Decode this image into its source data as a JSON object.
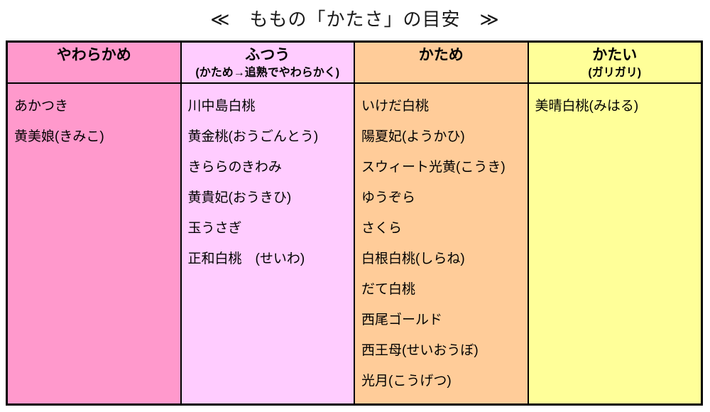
{
  "title": "≪　ももの「かたさ」の目安　≫",
  "table": {
    "border_color": "#000000",
    "columns": [
      {
        "header": "やわらかめ",
        "subheader": "",
        "color": "#FF99CC",
        "items": [
          "あかつき",
          "黄美娘(きみこ)"
        ]
      },
      {
        "header": "ふつう",
        "subheader": "(かため→追熟でやわらかく)",
        "color": "#FFCCFF",
        "items": [
          "川中島白桃",
          "黄金桃(おうごんとう)",
          "きららのきわみ",
          "黄貴妃(おうきひ)",
          "玉うさぎ",
          "正和白桃　(せいわ)"
        ]
      },
      {
        "header": "かため",
        "subheader": "",
        "color": "#FFCC99",
        "items": [
          "いけだ白桃",
          "陽夏妃(ようかひ)",
          "スウィート光黄(こうき)",
          "ゆうぞら",
          "さくら",
          "白根白桃(しらね)",
          "だて白桃",
          "西尾ゴールド",
          "西王母(せいおうぼ)",
          "光月(こうげつ)"
        ]
      },
      {
        "header": "かたい",
        "subheader": "(ガリガリ)",
        "color": "#FFFF99",
        "items": [
          "美晴白桃(みはる)"
        ]
      }
    ]
  },
  "chart_data": {
    "type": "table",
    "title": "≪　ももの「かたさ」の目安　≫",
    "columns": [
      "やわらかめ",
      "ふつう (かため→追熟でやわらかく)",
      "かため",
      "かたい (ガリガリ)"
    ],
    "rows": {
      "やわらかめ": [
        "あかつき",
        "黄美娘(きみこ)"
      ],
      "ふつう": [
        "川中島白桃",
        "黄金桃(おうごんとう)",
        "きららのきわみ",
        "黄貴妃(おうきひ)",
        "玉うさぎ",
        "正和白桃　(せいわ)"
      ],
      "かため": [
        "いけだ白桃",
        "陽夏妃(ようかひ)",
        "スウィート光黄(こうき)",
        "ゆうぞら",
        "さくら",
        "白根白桃(しらね)",
        "だて白桃",
        "西尾ゴールド",
        "西王母(せいおうぼ)",
        "光月(こうげつ)"
      ],
      "かたい": [
        "美晴白桃(みはる)"
      ]
    },
    "column_colors": [
      "#FF99CC",
      "#FFCCFF",
      "#FFCC99",
      "#FFFF99"
    ],
    "layout": "4 equal columns, bold centered headers, top-aligned item lists, black grid borders"
  }
}
